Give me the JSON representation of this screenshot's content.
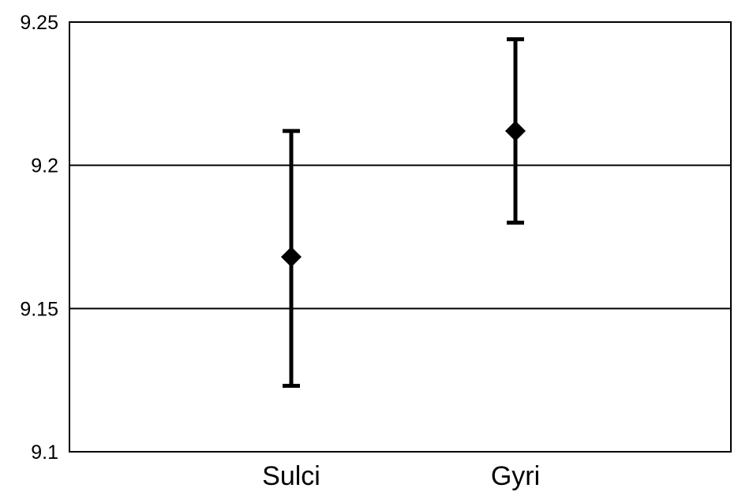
{
  "chart_data": {
    "type": "scatter",
    "subtype": "mean-with-error-bars",
    "title": "",
    "xlabel": "",
    "ylabel": "",
    "categories": [
      "Sulci",
      "Gyri"
    ],
    "values": [
      9.168,
      9.212
    ],
    "error_low": [
      9.123,
      9.18
    ],
    "error_high": [
      9.212,
      9.244
    ],
    "ylim": [
      9.1,
      9.25
    ],
    "y_ticks": [
      9.1,
      9.15,
      9.2,
      9.25
    ],
    "y_tick_labels": [
      "9.1",
      "9.15",
      "9.2",
      "9.25"
    ],
    "grid": "horizontal",
    "legend": "none",
    "marker": "diamond",
    "colors": {
      "marker": "#000000",
      "error_bar": "#000000",
      "grid": "#000000",
      "axes": "#000000",
      "background": "#ffffff"
    }
  }
}
